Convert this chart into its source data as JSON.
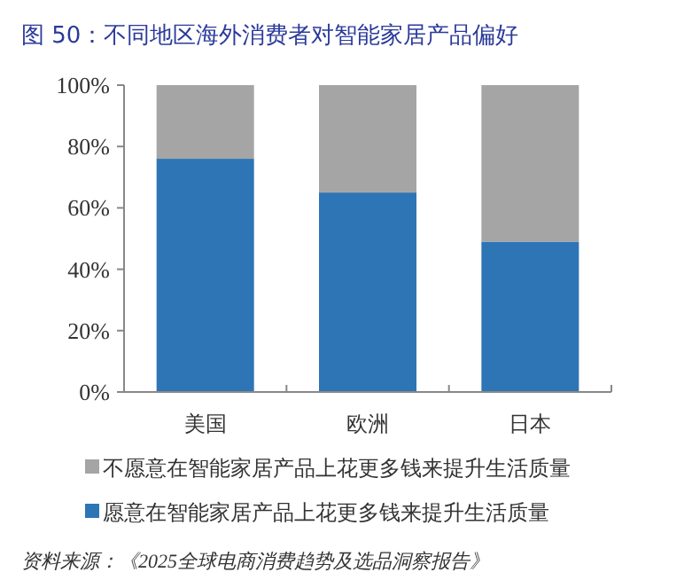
{
  "chart_data": {
    "type": "bar",
    "stacked": true,
    "title": "图 50：不同地区海外消费者对智能家居产品偏好",
    "categories": [
      "美国",
      "欧洲",
      "日本"
    ],
    "series": [
      {
        "name": "愿意在智能家居产品上花更多钱来提升生活质量",
        "color": "#2e75b6",
        "values": [
          76,
          65,
          49
        ]
      },
      {
        "name": "不愿意在智能家居产品上花更多钱来提升生活质量",
        "color": "#a5a5a5",
        "values": [
          24,
          35,
          51
        ]
      }
    ],
    "ylim": [
      0,
      100
    ],
    "yticks": [
      {
        "value": 0,
        "label": "0%"
      },
      {
        "value": 20,
        "label": "20%"
      },
      {
        "value": 40,
        "label": "40%"
      },
      {
        "value": 60,
        "label": "60%"
      },
      {
        "value": 80,
        "label": "80%"
      },
      {
        "value": 100,
        "label": "100%"
      }
    ],
    "grid": false,
    "legend": "bottom",
    "annotations": [
      "资料来源：《2025全球电商消费趋势及选品洞察报告》"
    ]
  }
}
